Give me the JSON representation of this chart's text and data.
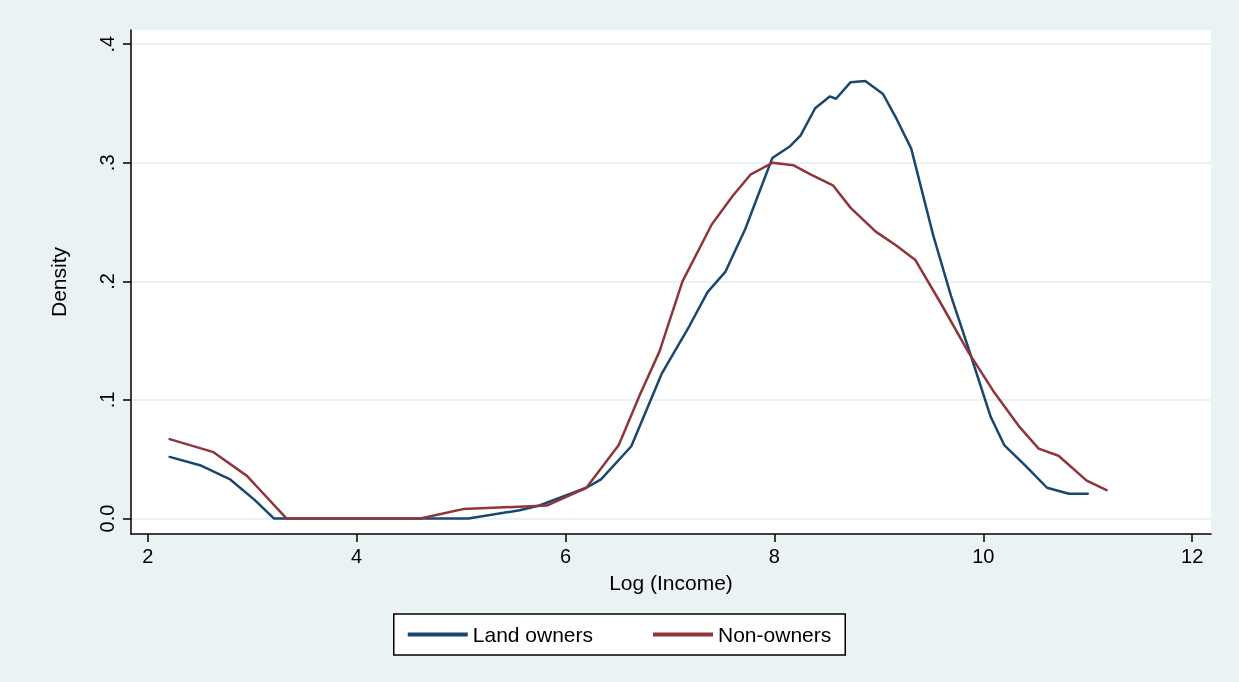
{
  "chart_data": {
    "type": "line",
    "xlabel": "Log (Income)",
    "ylabel": "Density",
    "xlim": [
      1.84,
      12.18
    ],
    "xticks": [
      2,
      4,
      6,
      8,
      10,
      12
    ],
    "ylim": [
      -0.013,
      0.412
    ],
    "yticks": [
      {
        "value": 0,
        "label": "0.0"
      },
      {
        "value": 0.1,
        "label": ".1"
      },
      {
        "value": 0.2,
        "label": ".2"
      },
      {
        "value": 0.3,
        "label": ".3"
      },
      {
        "value": 0.4,
        "label": ".4"
      }
    ],
    "grid": "y",
    "legend": "bottom",
    "marker": "none",
    "line_style": "solid",
    "series": [
      {
        "name": "Land owners",
        "color": "#1a476f",
        "x": [
          2.21,
          2.5,
          2.79,
          3.02,
          3.21,
          3.46,
          5.07,
          5.56,
          5.75,
          6.2,
          6.34,
          6.63,
          6.92,
          7.19,
          7.36,
          7.53,
          7.72,
          7.98,
          8.15,
          8.25,
          8.39,
          8.53,
          8.59,
          8.73,
          8.87,
          9.04,
          9.17,
          9.31,
          9.52,
          9.69,
          9.86,
          10.07,
          10.2,
          10.41,
          10.61,
          10.82,
          11.0
        ],
        "values": [
          0.052,
          0.045,
          0.033,
          0.016,
          0,
          0,
          0,
          0.007,
          0.011,
          0.026,
          0.033,
          0.061,
          0.122,
          0.163,
          0.191,
          0.208,
          0.244,
          0.304,
          0.314,
          0.323,
          0.346,
          0.356,
          0.354,
          0.368,
          0.369,
          0.358,
          0.337,
          0.312,
          0.239,
          0.188,
          0.143,
          0.086,
          0.062,
          0.044,
          0.026,
          0.021,
          0.021
        ]
      },
      {
        "name": "Non-owners",
        "color": "#90353b",
        "x": [
          2.21,
          2.63,
          2.95,
          3.33,
          4.61,
          5.02,
          5.82,
          6.2,
          6.51,
          6.71,
          6.9,
          7.12,
          7.4,
          7.6,
          7.77,
          7.98,
          8.18,
          8.35,
          8.56,
          8.73,
          8.97,
          9.17,
          9.35,
          9.59,
          9.86,
          10.1,
          10.34,
          10.53,
          10.72,
          10.99,
          11.18
        ],
        "values": [
          0.067,
          0.056,
          0.036,
          0,
          0,
          0.008,
          0.011,
          0.026,
          0.062,
          0.104,
          0.141,
          0.2,
          0.248,
          0.272,
          0.29,
          0.3,
          0.298,
          0.29,
          0.281,
          0.262,
          0.242,
          0.23,
          0.218,
          0.182,
          0.14,
          0.107,
          0.078,
          0.059,
          0.053,
          0.032,
          0.024
        ]
      }
    ]
  }
}
